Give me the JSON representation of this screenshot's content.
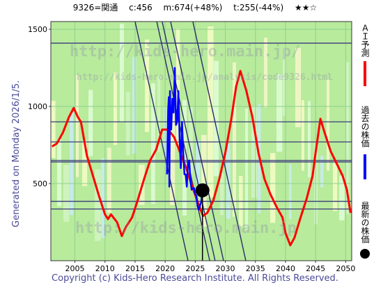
{
  "header": {
    "code": "9326=関通",
    "current": "c:456",
    "model": "m:674(+48%)",
    "target": "t:255(-44%)",
    "stars": "★★☆"
  },
  "left_note": "Generated on Monday 2026/1/5.",
  "footer": "Copyright (c) Kids-Hero Research Institute. All Rights Reserved.",
  "legend": {
    "ai_forecast": "ＡＩ予測",
    "past_price": "過去の株価",
    "latest_price": "最新の株価",
    "ai_color": "#ff0000",
    "past_color": "#0000ff",
    "latest_color": "#000000"
  },
  "watermarks": [
    "http://kids-hero.main.jp/",
    "http://kids-hero.main.jp/analysis/code9326.html",
    "http://kids-hero.main.jp"
  ],
  "chart_data": {
    "type": "line",
    "xlim": [
      2001,
      2051
    ],
    "ylim": [
      0,
      1550
    ],
    "x_ticks": [
      2005,
      2010,
      2015,
      2020,
      2025,
      2030,
      2035,
      2040,
      2045,
      2050
    ],
    "y_ticks": [
      500,
      1000,
      1500
    ],
    "grid": true,
    "horizontal_levels": [
      1410,
      900,
      770,
      650,
      640,
      385,
      335
    ],
    "trend_lines": [
      {
        "x": [
          2018.6,
          2027.4
        ],
        "y": [
          1550,
          0
        ]
      },
      {
        "x": [
          2019.5,
          2028.3
        ],
        "y": [
          1550,
          0
        ]
      },
      {
        "x": [
          2020.9,
          2029.7
        ],
        "y": [
          1550,
          0
        ]
      },
      {
        "x": [
          2024.6,
          2033.4
        ],
        "y": [
          1550,
          0
        ]
      },
      {
        "x": [
          2015.0,
          2023.8
        ],
        "y": [
          1550,
          0
        ]
      }
    ],
    "latest": {
      "x": 2026.2,
      "y": 456
    },
    "vertical_marker_x": 2026.2,
    "series": [
      {
        "name": "ＡＩ予測",
        "color": "#ff0000",
        "x": [
          2001.2,
          2002,
          2003,
          2004,
          2004.8,
          2005.5,
          2006,
          2006.5,
          2007,
          2008,
          2009,
          2010,
          2010.5,
          2011,
          2012,
          2012.8,
          2013.5,
          2014.5,
          2015.5,
          2016.5,
          2017.5,
          2018.5,
          2019.5,
          2020.5,
          2021.5,
          2022.5,
          2023.5,
          2024.5,
          2025.5,
          2026.3,
          2027,
          2028,
          2029,
          2030,
          2031,
          2031.8,
          2032.5,
          2033.5,
          2034.5,
          2035.5,
          2036.5,
          2037.5,
          2038.5,
          2039.5,
          2040,
          2040.8,
          2041.5,
          2042.5,
          2043.5,
          2044.5,
          2045,
          2045.8,
          2046.5,
          2047.5,
          2048.5,
          2049.5,
          2050.2,
          2050.8
        ],
        "y": [
          740,
          760,
          830,
          930,
          990,
          930,
          900,
          790,
          680,
          550,
          420,
          300,
          270,
          300,
          250,
          160,
          220,
          280,
          400,
          530,
          650,
          720,
          850,
          850,
          800,
          700,
          600,
          480,
          370,
          290,
          310,
          390,
          530,
          700,
          920,
          1130,
          1230,
          1100,
          930,
          700,
          530,
          430,
          350,
          280,
          180,
          100,
          150,
          280,
          400,
          550,
          700,
          920,
          830,
          710,
          630,
          550,
          460,
          310
        ]
      },
      {
        "name": "過去の株価",
        "color": "#0000ff",
        "x": [
          2020.3,
          2020.5,
          2020.6,
          2020.7,
          2020.8,
          2020.9,
          2021,
          2021.2,
          2021.4,
          2021.6,
          2021.8,
          2022,
          2022.2,
          2022.4,
          2022.6,
          2022.8,
          2023,
          2023.2,
          2023.4,
          2023.6,
          2023.8,
          2024,
          2024.2,
          2024.4,
          2024.6,
          2024.8,
          2025,
          2025.2,
          2025.4,
          2025.6,
          2025.8,
          2026,
          2026.2
        ],
        "y": [
          560,
          980,
          1060,
          480,
          1100,
          900,
          850,
          1050,
          960,
          1250,
          880,
          900,
          1100,
          790,
          600,
          900,
          700,
          560,
          560,
          480,
          640,
          650,
          520,
          460,
          470,
          470,
          430,
          420,
          350,
          330,
          360,
          380,
          456
        ]
      }
    ]
  }
}
